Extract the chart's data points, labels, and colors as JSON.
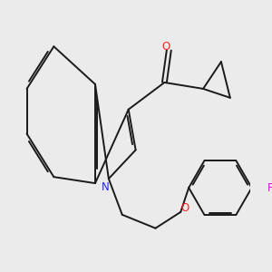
{
  "background_color": "#ebebeb",
  "bond_color": "#1a1a1a",
  "atom_colors": {
    "N": "#2222ff",
    "O": "#ff2222",
    "F": "#ee00ee"
  },
  "figsize": [
    3.0,
    3.0
  ],
  "dpi": 100,
  "lw": 1.4,
  "fs": 8.5
}
